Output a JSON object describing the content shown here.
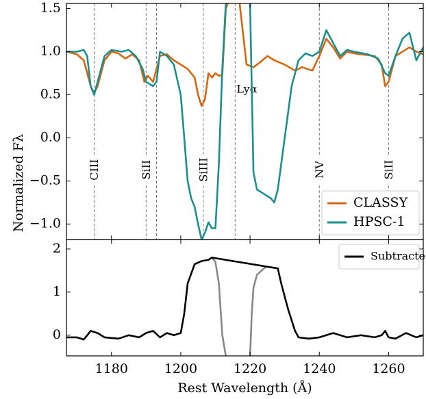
{
  "chart_data": [
    {
      "type": "line",
      "ylabel": "Normalized Fλ",
      "xlim": [
        1167,
        1270
      ],
      "xticks": [
        1180,
        1200,
        1220,
        1240,
        1260
      ],
      "show_xtick_labels": false,
      "ylim": [
        -1.18,
        1.56
      ],
      "yticks": [
        {
          "value": -1,
          "label": "−1.0"
        },
        {
          "value": -0.5,
          "label": "−0.5"
        },
        {
          "value": 0,
          "label": "0.0"
        },
        0.5,
        {
          "value": 1,
          "label": "1.0"
        },
        1.5
      ],
      "legend": "lower right",
      "lines": [
        {
          "x": 1175,
          "label": "CIII"
        },
        {
          "x": 1190,
          "label": "SiII"
        },
        {
          "x": 1193
        },
        {
          "x": 1206.5,
          "label": "SiIII"
        },
        {
          "x": 1215.7,
          "label": "Lyα",
          "rotated": false
        },
        {
          "x": 1240,
          "label": "NV"
        },
        {
          "x": 1260,
          "label": "SiII"
        }
      ],
      "series": [
        {
          "name": "CLASSY",
          "color": "#d4670f",
          "x": [
            1167,
            1170,
            1172,
            1174,
            1175,
            1176,
            1178,
            1180,
            1182,
            1184,
            1186,
            1188,
            1189.5,
            1190.5,
            1192,
            1194,
            1196,
            1198,
            1200,
            1202,
            1204,
            1205,
            1206,
            1207,
            1208,
            1209,
            1210,
            1211,
            1212,
            1213,
            1213.6,
            1215,
            1217,
            1218,
            1219,
            1221,
            1223,
            1225,
            1227,
            1230,
            1233,
            1235,
            1238,
            1240,
            1242,
            1244,
            1246,
            1248,
            1250,
            1252,
            1256,
            1258,
            1259,
            1260,
            1262,
            1264,
            1266,
            1268,
            1270
          ],
          "values": [
            1.0,
            0.97,
            0.9,
            0.6,
            0.52,
            0.6,
            0.9,
            1.0,
            0.98,
            0.92,
            0.97,
            0.9,
            0.65,
            0.72,
            0.65,
            0.95,
            0.97,
            0.9,
            0.85,
            0.8,
            0.7,
            0.5,
            0.37,
            0.45,
            0.75,
            0.7,
            0.75,
            0.72,
            0.73,
            1.5,
            1.56,
            null,
            1.56,
            1.2,
            0.85,
            0.82,
            0.88,
            0.95,
            0.9,
            0.85,
            0.78,
            0.82,
            0.78,
            0.95,
            1.15,
            1.05,
            0.92,
            1.0,
            0.98,
            0.97,
            0.95,
            0.85,
            0.6,
            0.65,
            0.95,
            1.0,
            1.05,
            1.0,
            0.97
          ]
        },
        {
          "name": "HPSC-1",
          "color": "#1b8f8f",
          "x": [
            1167,
            1170,
            1172,
            1173,
            1174,
            1175,
            1176,
            1178,
            1180,
            1183,
            1185,
            1187,
            1189,
            1190,
            1192,
            1193,
            1194,
            1196,
            1198,
            1200,
            1201,
            1202,
            1203,
            1204,
            1205,
            1206,
            1207,
            1208,
            1209,
            1210,
            1211,
            1212,
            1213,
            1216,
            1220,
            1221,
            1222,
            1224,
            1226,
            1227,
            1228,
            1230,
            1232,
            1234,
            1236,
            1238,
            1240,
            1242,
            1244,
            1246,
            1248,
            1250,
            1254,
            1257,
            1259,
            1260,
            1262,
            1264,
            1266,
            1268,
            1270
          ],
          "values": [
            1.0,
            1.0,
            1.02,
            0.95,
            0.6,
            0.5,
            0.65,
            0.95,
            1.02,
            1.0,
            1.02,
            0.95,
            0.8,
            0.65,
            0.6,
            0.65,
            1.0,
            0.95,
            0.85,
            0.5,
            0.0,
            -0.5,
            -0.7,
            -0.8,
            -1.0,
            -1.18,
            -1.1,
            -0.98,
            -1.05,
            -1.05,
            -0.3,
            0.8,
            1.56,
            null,
            1.56,
            -0.4,
            -0.6,
            -0.65,
            -0.7,
            -0.75,
            -0.6,
            0.0,
            0.6,
            0.9,
            0.98,
            0.95,
            1.0,
            1.25,
            1.1,
            0.95,
            1.02,
            1.0,
            0.97,
            0.92,
            0.75,
            0.72,
            0.95,
            1.15,
            1.22,
            0.9,
            1.05
          ]
        }
      ]
    },
    {
      "type": "line",
      "xlabel": "Rest Wavelength (Å)",
      "xlim": [
        1167,
        1270
      ],
      "xticks": [
        1180,
        1200,
        1220,
        1240,
        1260
      ],
      "ylim": [
        -0.48,
        2.22
      ],
      "yticks": [
        0,
        1,
        2
      ],
      "legend": "upper right",
      "series": [
        {
          "color": "#888888",
          "x": [
            1209,
            1210,
            1211,
            1212,
            1213
          ],
          "values": [
            1.8,
            1.7,
            1.2,
            0.0,
            -0.48
          ]
        },
        {
          "color": "#888888",
          "x": [
            1220,
            1220.5,
            1221,
            1222,
            1224,
            1225
          ],
          "values": [
            -0.48,
            0.5,
            1.1,
            1.4,
            1.55,
            1.6
          ]
        },
        {
          "name": "Subtracted",
          "color": "#000000",
          "x": [
            1167,
            1170,
            1172,
            1174,
            1176,
            1178,
            1182,
            1185,
            1188,
            1190,
            1192,
            1194,
            1196,
            1198,
            1200,
            1201,
            1202,
            1204,
            1206,
            1208,
            1209,
            1228,
            1229,
            1231,
            1233,
            1234,
            1237,
            1240,
            1244,
            1248,
            1252,
            1256,
            1258,
            1259,
            1260,
            1262,
            1265,
            1268,
            1270
          ],
          "values": [
            -0.05,
            -0.05,
            -0.1,
            0.1,
            0.05,
            -0.05,
            -0.08,
            0.0,
            -0.05,
            0.05,
            0.1,
            -0.05,
            0.05,
            0.0,
            0.05,
            0.5,
            1.2,
            1.65,
            1.72,
            1.75,
            1.8,
            1.55,
            1.2,
            0.6,
            0.1,
            -0.05,
            -0.08,
            -0.05,
            0.05,
            -0.05,
            0.0,
            -0.05,
            0.0,
            0.1,
            -0.05,
            -0.08,
            0.05,
            -0.05,
            0.0
          ]
        }
      ]
    }
  ]
}
